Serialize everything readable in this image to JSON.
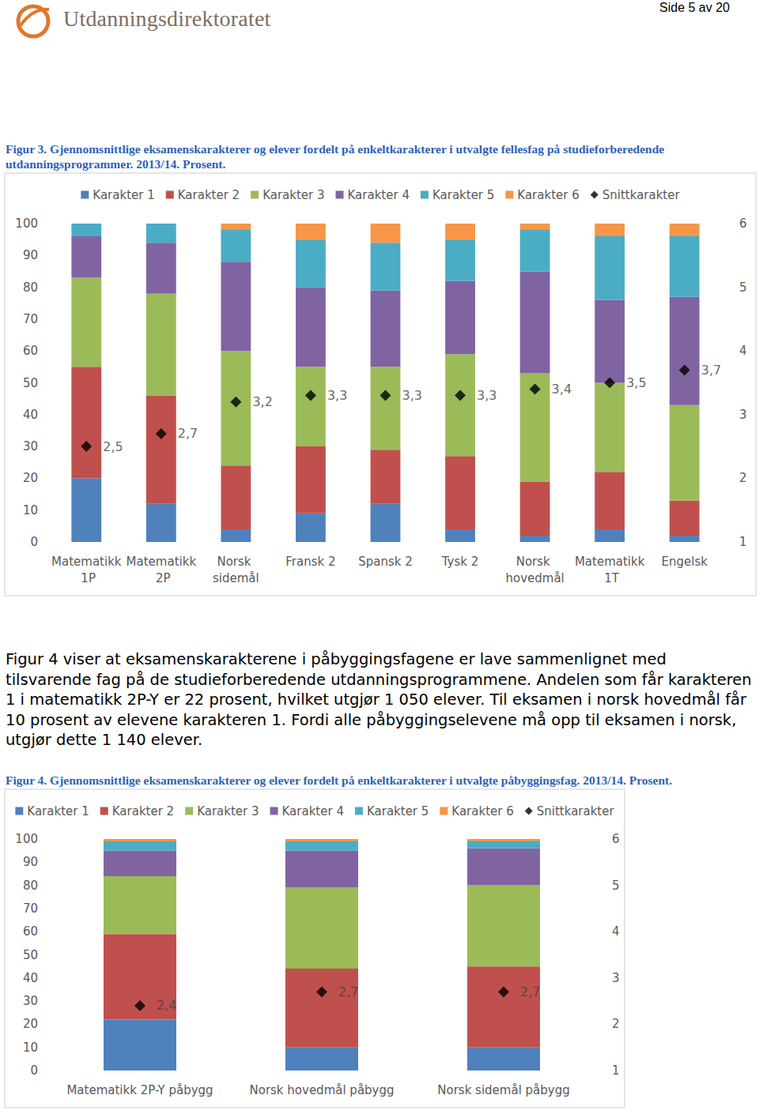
{
  "header": {
    "logo_text": "Utdanningsdirektoratet",
    "page": "Side 5 av 20"
  },
  "paragraph": "Figur 4 viser at eksamenskarakterene i påbyggingsfagene er lave sammenlignet med tilsvarende fag på de studieforberedende utdanningsprogrammene. Andelen som får karakteren 1 i matematikk 2P-Y er 22 prosent, hvilket utgjør 1 050 elever. Til eksamen i norsk hovedmål får 10 prosent av elevene karakteren 1. Fordi alle påbyggingselevene må opp til eksamen i norsk, utgjør dette 1 140 elever.",
  "chart_data": [
    {
      "type": "bar",
      "stacked": true,
      "grid": false,
      "legend": "top",
      "title": "Figur 3. Gjennomsnittlige eksamenskarakterer og elever fordelt på enkeltkarakterer i utvalgte fellesfag på studieforberedende utdanningsprogrammer. 2013/14. Prosent.",
      "categories": [
        "Matematikk 1P",
        "Matematikk 2P",
        "Norsk sidemål",
        "Fransk 2",
        "Spansk 2",
        "Tysk 2",
        "Norsk hovedmål",
        "Matematikk 1T",
        "Engelsk"
      ],
      "ylim": [
        0,
        100
      ],
      "yticks": [
        0,
        10,
        20,
        30,
        40,
        50,
        60,
        70,
        80,
        90,
        100
      ],
      "y2lim": [
        1,
        6
      ],
      "y2ticks": [
        1,
        2,
        3,
        4,
        5,
        6
      ],
      "series": [
        {
          "name": "Karakter 1",
          "color": "#4f81bd",
          "values": [
            20,
            12,
            4,
            9,
            12,
            4,
            2,
            4,
            2
          ]
        },
        {
          "name": "Karakter 2",
          "color": "#c0504d",
          "values": [
            35,
            34,
            20,
            21,
            17,
            23,
            17,
            18,
            11
          ]
        },
        {
          "name": "Karakter 3",
          "color": "#9bbb59",
          "values": [
            28,
            32,
            36,
            25,
            26,
            32,
            34,
            28,
            30
          ]
        },
        {
          "name": "Karakter 4",
          "color": "#8064a2",
          "values": [
            13,
            16,
            28,
            25,
            24,
            23,
            32,
            26,
            34
          ]
        },
        {
          "name": "Karakter 5",
          "color": "#4bacc6",
          "values": [
            4,
            6,
            10,
            15,
            15,
            13,
            13,
            20,
            19
          ]
        },
        {
          "name": "Karakter 6",
          "color": "#f79646",
          "values": [
            0,
            0,
            2,
            5,
            6,
            5,
            2,
            4,
            4
          ]
        },
        {
          "name": "Snittkarakter",
          "type": "scatter",
          "axis": "y2",
          "marker": "diamond",
          "color": "#000000",
          "data_labels": true,
          "values": [
            2.5,
            2.7,
            3.2,
            3.3,
            3.3,
            3.3,
            3.4,
            3.5,
            3.7
          ],
          "value_labels": [
            "2,5",
            "2,7",
            "3,2",
            "3,3",
            "3,3",
            "3,3",
            "3,4",
            "3,5",
            "3,7"
          ]
        }
      ]
    },
    {
      "type": "bar",
      "stacked": true,
      "grid": false,
      "legend": "top",
      "title": "Figur 4. Gjennomsnittlige eksamenskarakterer og elever fordelt på enkeltkarakterer i utvalgte påbyggingsfag. 2013/14. Prosent.",
      "categories": [
        "Matematikk 2P-Y påbygg",
        "Norsk hovedmål påbygg",
        "Norsk sidemål påbygg"
      ],
      "ylim": [
        0,
        100
      ],
      "yticks": [
        0,
        10,
        20,
        30,
        40,
        50,
        60,
        70,
        80,
        90,
        100
      ],
      "y2lim": [
        1,
        6
      ],
      "y2ticks": [
        1,
        2,
        3,
        4,
        5,
        6
      ],
      "series": [
        {
          "name": "Karakter 1",
          "color": "#4f81bd",
          "values": [
            22,
            10,
            10
          ]
        },
        {
          "name": "Karakter 2",
          "color": "#c0504d",
          "values": [
            37,
            34,
            35
          ]
        },
        {
          "name": "Karakter 3",
          "color": "#9bbb59",
          "values": [
            25,
            35,
            35
          ]
        },
        {
          "name": "Karakter 4",
          "color": "#8064a2",
          "values": [
            11,
            16,
            16
          ]
        },
        {
          "name": "Karakter 5",
          "color": "#4bacc6",
          "values": [
            4,
            4,
            3
          ]
        },
        {
          "name": "Karakter 6",
          "color": "#f79646",
          "values": [
            1,
            1,
            1
          ]
        },
        {
          "name": "Snittkarakter",
          "type": "scatter",
          "axis": "y2",
          "marker": "diamond",
          "color": "#000000",
          "data_labels": true,
          "values": [
            2.4,
            2.7,
            2.7
          ],
          "value_labels": [
            "2,4",
            "2,7",
            "2,7"
          ]
        }
      ]
    }
  ]
}
